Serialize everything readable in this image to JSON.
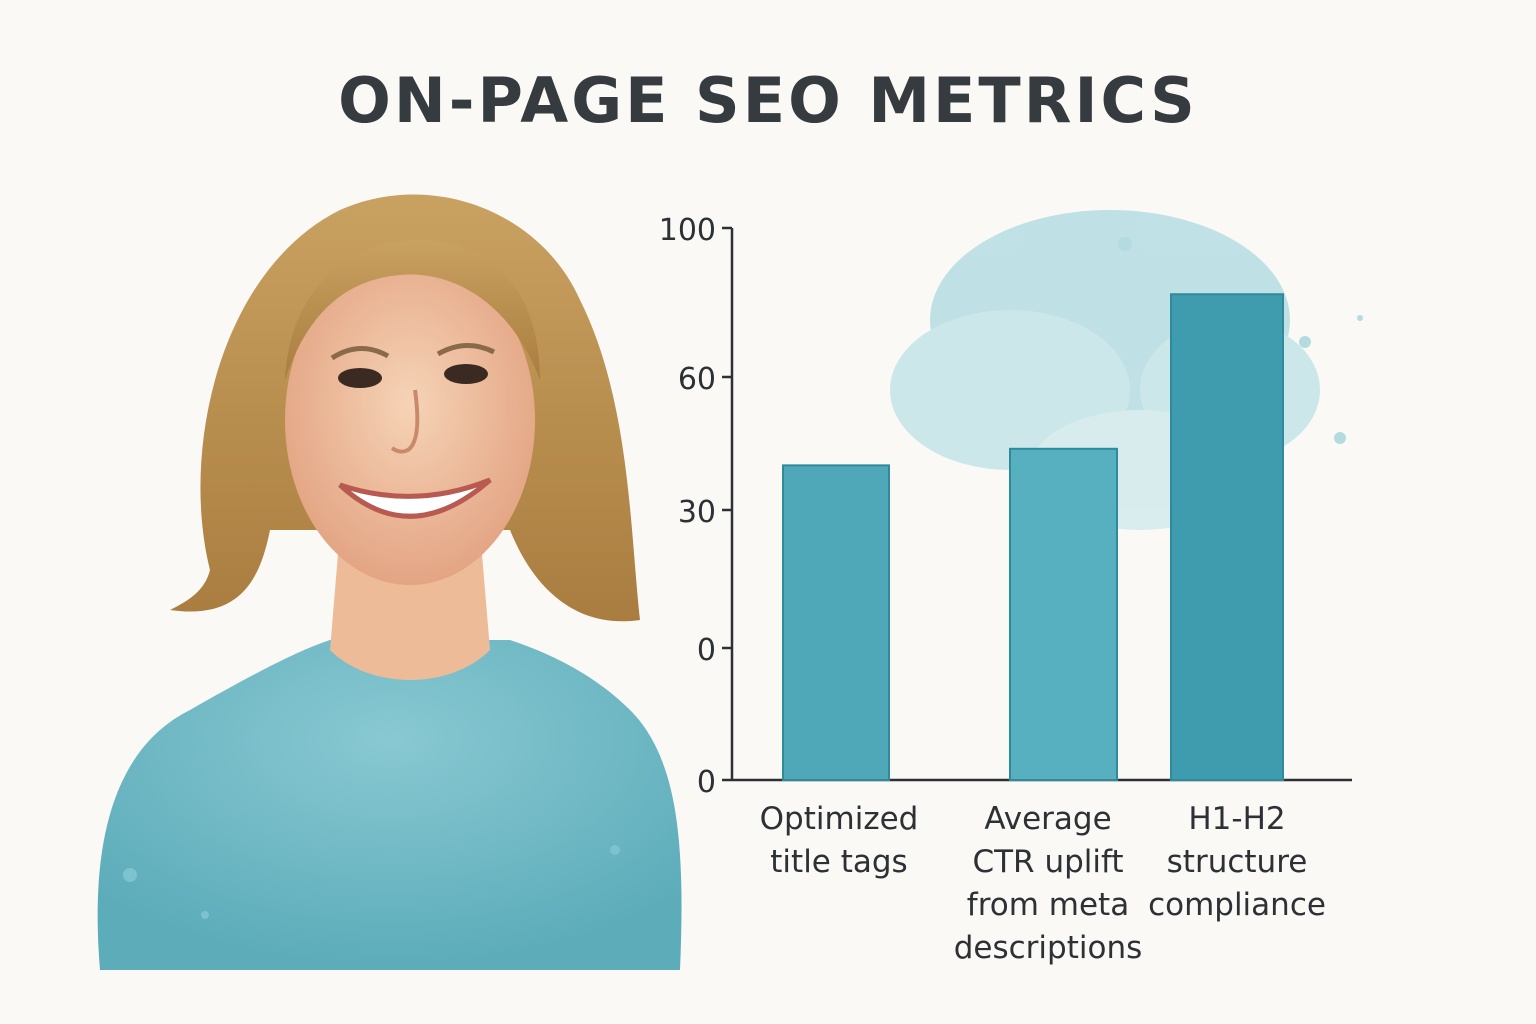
{
  "title": "ON-PAGE SEO METRICS",
  "portrait": {
    "subject": "smiling woman watercolor portrait"
  },
  "colors": {
    "bar": "#4ea8b8",
    "bar_dark": "#2f8a9b",
    "axis": "#2d3135",
    "splash": "#8fcfd8",
    "shirt": "#5fb0be",
    "hair": "#b98f4e",
    "skin": "#f1c4a3"
  },
  "chart_data": {
    "type": "bar",
    "title": "ON-PAGE SEO METRICS",
    "xlabel": "",
    "ylabel": "",
    "ytick_labels": [
      "100",
      "60",
      "30",
      "0",
      "0"
    ],
    "ylim": [
      0,
      100
    ],
    "grid": false,
    "categories": [
      [
        "Optimized",
        "title tags"
      ],
      [
        "Average",
        "CTR uplift",
        "from meta",
        "descriptions"
      ],
      [
        "H1-H2",
        "structure",
        "compliance"
      ]
    ],
    "values": [
      57,
      60,
      88
    ]
  }
}
